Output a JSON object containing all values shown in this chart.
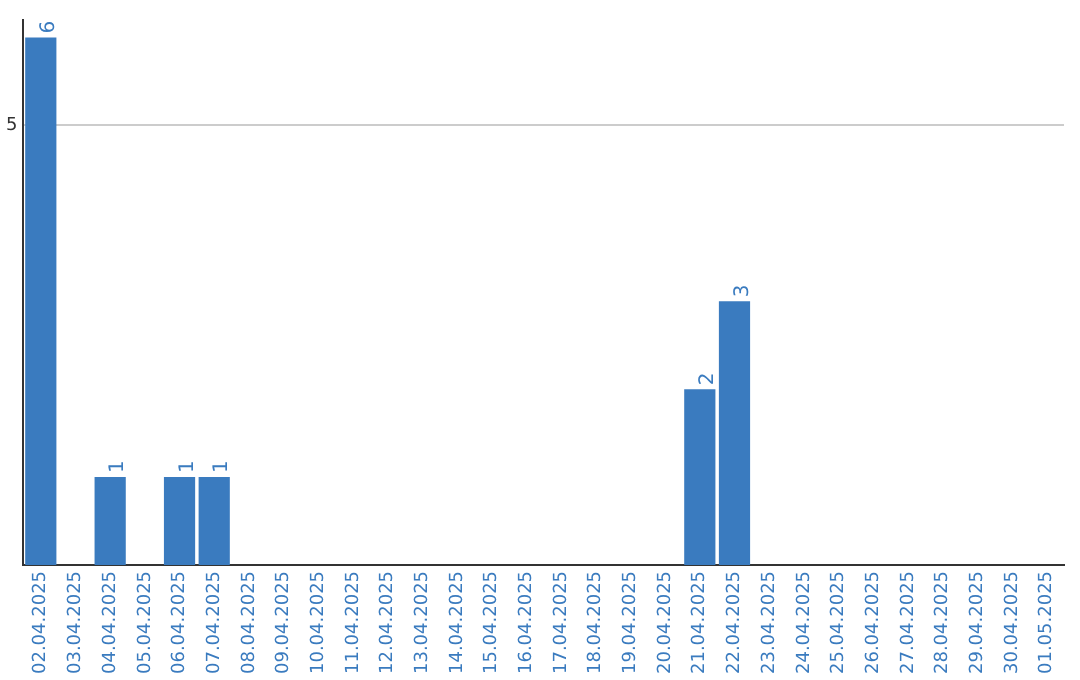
{
  "chart_data": {
    "type": "bar",
    "categories": [
      "02.04.2025",
      "03.04.2025",
      "04.04.2025",
      "05.04.2025",
      "06.04.2025",
      "07.04.2025",
      "08.04.2025",
      "09.04.2025",
      "10.04.2025",
      "11.04.2025",
      "12.04.2025",
      "13.04.2025",
      "14.04.2025",
      "15.04.2025",
      "16.04.2025",
      "17.04.2025",
      "18.04.2025",
      "19.04.2025",
      "20.04.2025",
      "21.04.2025",
      "22.04.2025",
      "23.04.2025",
      "24.04.2025",
      "25.04.2025",
      "26.04.2025",
      "27.04.2025",
      "28.04.2025",
      "29.04.2025",
      "30.04.2025",
      "01.05.2025"
    ],
    "values": [
      6,
      0,
      1,
      0,
      1,
      1,
      0,
      0,
      0,
      0,
      0,
      0,
      0,
      0,
      0,
      0,
      0,
      0,
      0,
      2,
      3,
      0,
      0,
      0,
      0,
      0,
      0,
      0,
      0,
      0
    ],
    "value_labels": [
      "6",
      null,
      "1",
      null,
      "1",
      "1",
      null,
      null,
      null,
      null,
      null,
      null,
      null,
      null,
      null,
      null,
      null,
      null,
      null,
      "2",
      "3",
      null,
      null,
      null,
      null,
      null,
      null,
      null,
      null,
      null
    ],
    "color": "#3a7bbf",
    "ylim": [
      0,
      6.2
    ],
    "yticks": [
      5
    ],
    "grid": "y"
  }
}
